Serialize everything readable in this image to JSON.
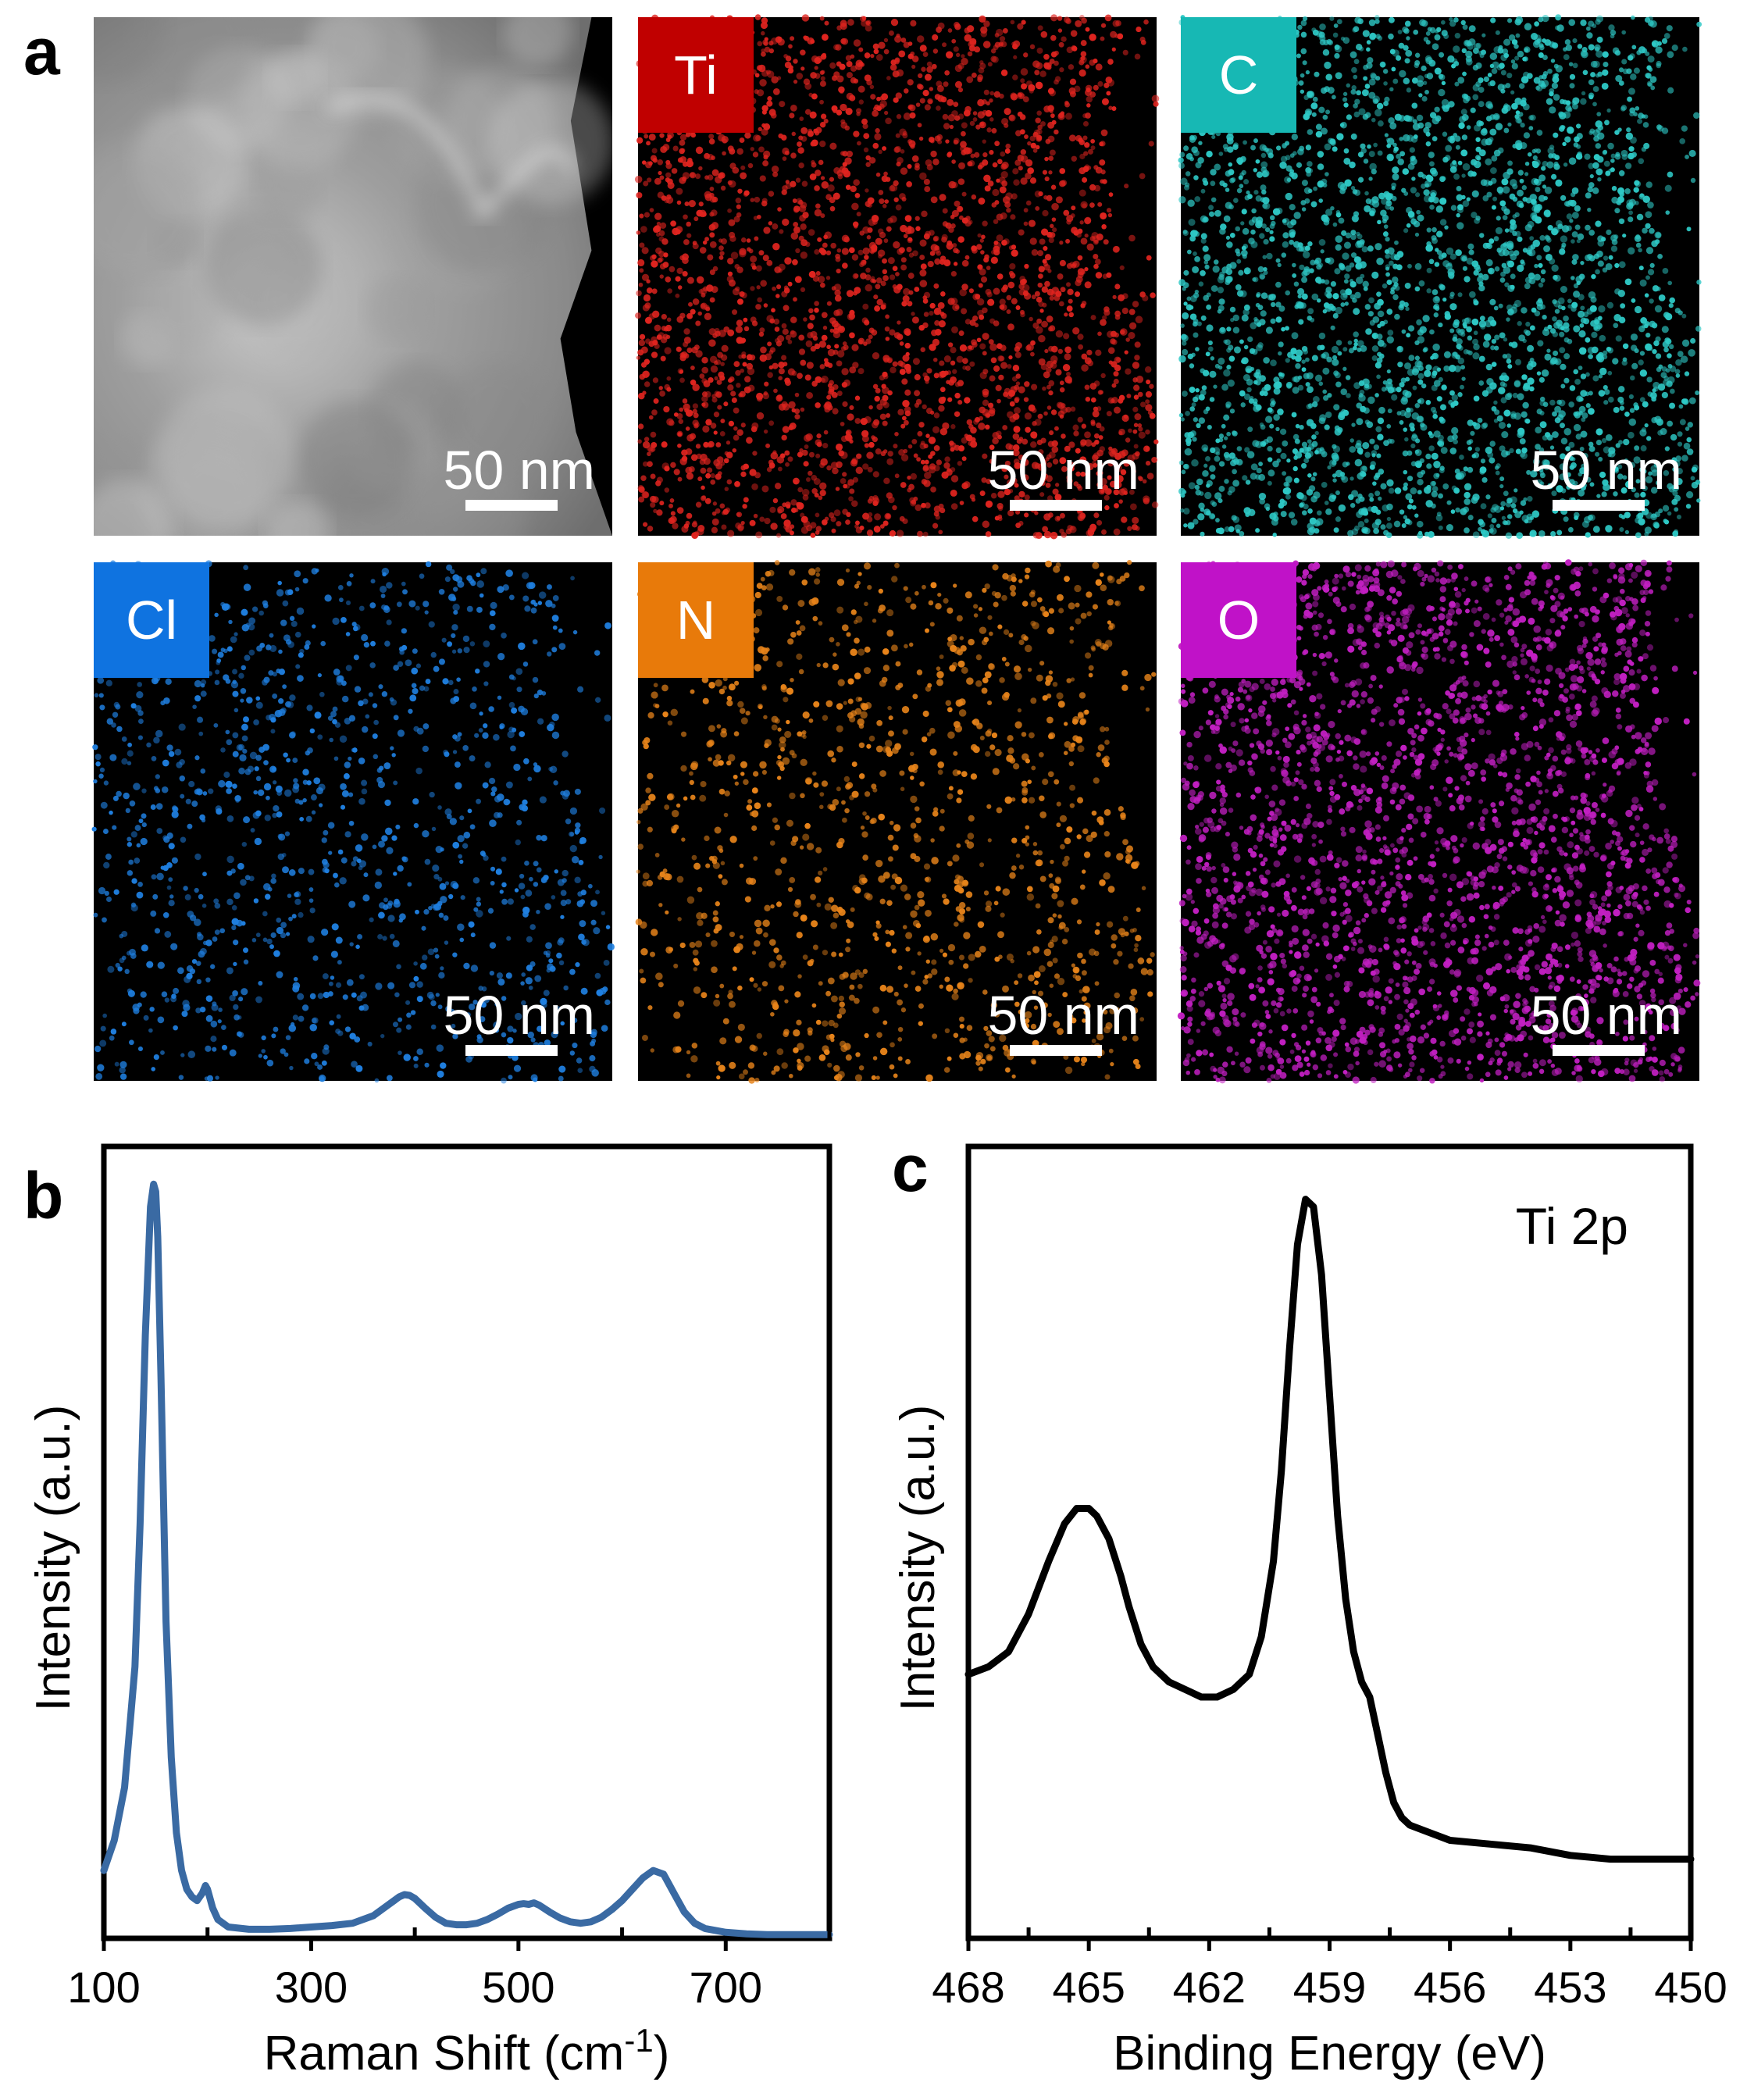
{
  "panel_a": {
    "letter": "a",
    "tiles": [
      {
        "label": "",
        "scale_bar": "50 nm",
        "kind": "haadf",
        "color": "#cfcfcf",
        "label_bg": ""
      },
      {
        "label": "Ti",
        "scale_bar": "50 nm",
        "kind": "map",
        "color": "#e0241f",
        "label_bg": "#c00000",
        "dot_density": 0.9
      },
      {
        "label": "C",
        "scale_bar": "50 nm",
        "kind": "map",
        "color": "#2ec9c6",
        "label_bg": "#17b8b4",
        "dot_density": 1.0
      },
      {
        "label": "Cl",
        "scale_bar": "50 nm",
        "kind": "map",
        "color": "#1f7fe0",
        "label_bg": "#0f73e0",
        "dot_density": 0.4
      },
      {
        "label": "N",
        "scale_bar": "50 nm",
        "kind": "map",
        "color": "#e8841a",
        "label_bg": "#e87a0a",
        "dot_density": 0.4
      },
      {
        "label": "O",
        "scale_bar": "50 nm",
        "kind": "map",
        "color": "#c21fc2",
        "label_bg": "#c012c8",
        "dot_density": 0.85
      }
    ]
  },
  "chart_data": [
    {
      "panel": "b",
      "type": "line",
      "xlabel": "Raman Shift (cm",
      "xlabel_sup": "-1",
      "xlabel_end": ")",
      "ylabel": "Intensity (a.u.)",
      "xlim": [
        100,
        800
      ],
      "ylim": [
        0,
        1.05
      ],
      "xticks": [
        100,
        300,
        500,
        700
      ],
      "minor_xticks": [
        200,
        400,
        600,
        800
      ],
      "line_color": "#3a6aa3",
      "series": [
        {
          "x": [
            100,
            110,
            120,
            130,
            135,
            140,
            145,
            148,
            150,
            152,
            155,
            158,
            160,
            165,
            170,
            175,
            180,
            185,
            190,
            195,
            198,
            200,
            205,
            210,
            220,
            240,
            260,
            280,
            300,
            320,
            340,
            360,
            375,
            385,
            390,
            395,
            400,
            410,
            420,
            430,
            440,
            450,
            460,
            470,
            480,
            490,
            500,
            505,
            510,
            515,
            520,
            530,
            540,
            550,
            560,
            570,
            580,
            590,
            600,
            610,
            620,
            630,
            640,
            650,
            660,
            670,
            680,
            700,
            720,
            740,
            760,
            780,
            800
          ],
          "y": [
            0.09,
            0.13,
            0.2,
            0.36,
            0.55,
            0.8,
            0.97,
            1.0,
            0.99,
            0.93,
            0.75,
            0.55,
            0.42,
            0.24,
            0.14,
            0.09,
            0.065,
            0.055,
            0.05,
            0.06,
            0.07,
            0.065,
            0.04,
            0.025,
            0.015,
            0.012,
            0.012,
            0.013,
            0.015,
            0.017,
            0.02,
            0.03,
            0.045,
            0.055,
            0.058,
            0.057,
            0.053,
            0.04,
            0.028,
            0.02,
            0.018,
            0.018,
            0.02,
            0.025,
            0.032,
            0.04,
            0.045,
            0.046,
            0.045,
            0.047,
            0.044,
            0.035,
            0.027,
            0.022,
            0.02,
            0.022,
            0.028,
            0.038,
            0.05,
            0.065,
            0.08,
            0.09,
            0.085,
            0.06,
            0.035,
            0.02,
            0.013,
            0.008,
            0.006,
            0.005,
            0.005,
            0.005,
            0.005
          ]
        }
      ]
    },
    {
      "panel": "c",
      "type": "line",
      "xlabel": "Binding Energy (eV)",
      "ylabel": "Intensity (a.u.)",
      "annotation": "Ti 2p",
      "xlim": [
        468,
        450
      ],
      "ylim": [
        0,
        1.05
      ],
      "xticks": [
        468,
        465,
        462,
        459,
        456,
        453,
        450
      ],
      "minor_xticks": [
        466.5,
        463.5,
        460.5,
        457.5,
        454.5,
        451.5
      ],
      "line_color": "#000000",
      "series": [
        {
          "x": [
            468,
            467.5,
            467,
            466.5,
            466,
            465.6,
            465.3,
            465,
            464.8,
            464.5,
            464.2,
            464,
            463.7,
            463.4,
            463,
            462.6,
            462.2,
            461.8,
            461.4,
            461,
            460.7,
            460.4,
            460.2,
            460,
            459.8,
            459.6,
            459.4,
            459.2,
            459,
            458.8,
            458.6,
            458.4,
            458.2,
            458,
            457.8,
            457.6,
            457.4,
            457.2,
            457,
            456.5,
            456,
            455,
            454,
            453,
            452,
            451,
            450
          ],
          "y": [
            0.35,
            0.36,
            0.38,
            0.43,
            0.5,
            0.55,
            0.57,
            0.57,
            0.56,
            0.53,
            0.48,
            0.44,
            0.39,
            0.36,
            0.34,
            0.33,
            0.32,
            0.32,
            0.33,
            0.35,
            0.4,
            0.5,
            0.62,
            0.78,
            0.92,
            0.98,
            0.97,
            0.88,
            0.72,
            0.56,
            0.45,
            0.38,
            0.34,
            0.32,
            0.27,
            0.22,
            0.18,
            0.16,
            0.15,
            0.14,
            0.13,
            0.125,
            0.12,
            0.11,
            0.105,
            0.105,
            0.105
          ]
        }
      ]
    }
  ]
}
